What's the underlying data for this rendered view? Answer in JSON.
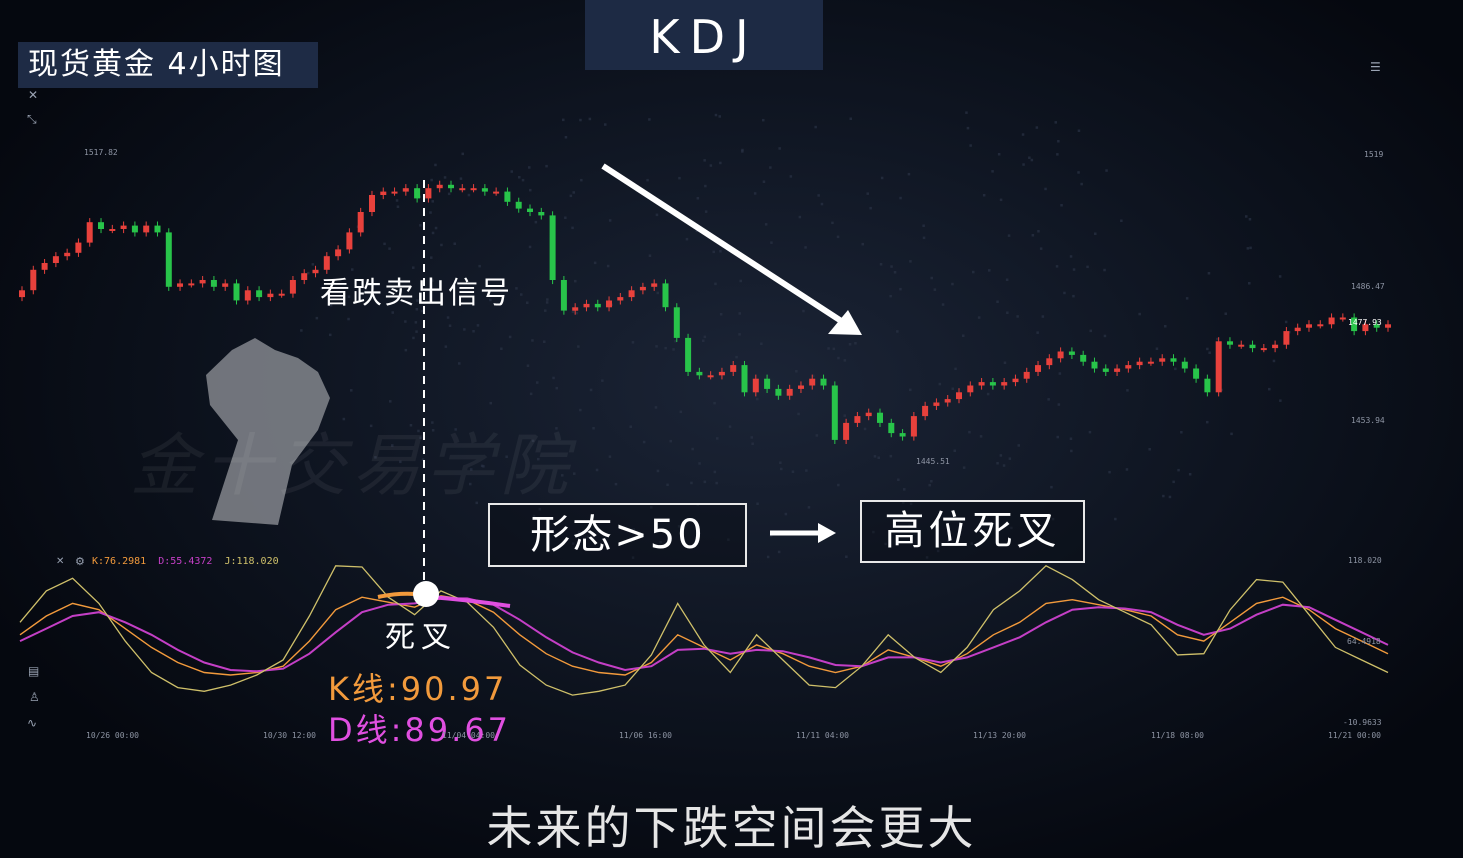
{
  "tag_title": "现货黄金  4小时图",
  "tag_kdj": "KDJ",
  "sell_signal_label": "看跌卖出信号",
  "death_cross_label": "死叉",
  "k_value_label": "K线:90.97",
  "d_value_label": "D线:89.67",
  "box_condition": "形态>50",
  "box_result": "高位死叉",
  "subtitle": "未来的下跌空间会更大",
  "watermark": "金十交易学院",
  "colors": {
    "up": "#e8413c",
    "down": "#28c44a",
    "k_line": "#f29a3c",
    "d_line": "#c43fc6",
    "j_line": "#cfc06a"
  },
  "chart_data": [
    {
      "type": "candlestick",
      "title": "现货黄金 4小时图",
      "price_labels": [
        "1517.82",
        "1519",
        "1486.47",
        "1477.93",
        "1453.94",
        "1445.51"
      ],
      "note": "approximate close prices per candle",
      "closes": [
        1486,
        1492,
        1494,
        1496,
        1497,
        1500,
        1506,
        1504,
        1504,
        1505,
        1503,
        1505,
        1503,
        1487,
        1488,
        1488,
        1489,
        1487,
        1488,
        1483,
        1486,
        1484,
        1485,
        1485,
        1489,
        1491,
        1492,
        1496,
        1498,
        1503,
        1509,
        1514,
        1515,
        1515,
        1516,
        1513,
        1516,
        1517,
        1516,
        1516,
        1516,
        1515,
        1515,
        1512,
        1510,
        1509,
        1508,
        1489,
        1480,
        1481,
        1482,
        1481,
        1483,
        1484,
        1486,
        1487,
        1488,
        1481,
        1472,
        1462,
        1461,
        1461,
        1462,
        1464,
        1456,
        1460,
        1457,
        1455,
        1457,
        1458,
        1460,
        1458,
        1442,
        1447,
        1449,
        1450,
        1447,
        1444,
        1443,
        1449,
        1452,
        1453,
        1454,
        1456,
        1458,
        1459,
        1458,
        1459,
        1460,
        1462,
        1464,
        1466,
        1468,
        1467,
        1465,
        1463,
        1462,
        1463,
        1464,
        1465,
        1465,
        1466,
        1465,
        1463,
        1460,
        1456,
        1471,
        1470,
        1470,
        1469,
        1469,
        1470,
        1474,
        1475,
        1476,
        1476,
        1478,
        1478,
        1474,
        1476,
        1475,
        1476
      ]
    },
    {
      "type": "line",
      "title": "KDJ",
      "legend": [
        "K:76.2981",
        "D:55.4372",
        "J:118.020"
      ],
      "y_ticks": [
        "118.020",
        "64.4918",
        "-10.9633"
      ],
      "x_ticks": [
        "10/26 00:00",
        "10/30 12:00",
        "11/04 04:00",
        "11/06 16:00",
        "11/11 04:00",
        "11/13 20:00",
        "11/18 08:00",
        "11/21 00:00"
      ],
      "series": [
        {
          "name": "K",
          "values": [
            60,
            75,
            85,
            80,
            65,
            50,
            38,
            30,
            28,
            30,
            35,
            55,
            80,
            90,
            86,
            82,
            91,
            88,
            78,
            60,
            45,
            35,
            30,
            28,
            38,
            60,
            50,
            40,
            52,
            45,
            35,
            30,
            35,
            48,
            42,
            35,
            45,
            60,
            70,
            85,
            88,
            84,
            80,
            75,
            60,
            55,
            70,
            85,
            90,
            80,
            65,
            55,
            45
          ]
        },
        {
          "name": "D",
          "values": [
            55,
            65,
            75,
            78,
            70,
            60,
            48,
            38,
            32,
            31,
            33,
            45,
            62,
            78,
            84,
            85,
            89,
            89,
            84,
            72,
            58,
            46,
            38,
            32,
            35,
            48,
            49,
            45,
            48,
            47,
            42,
            36,
            35,
            42,
            42,
            38,
            42,
            50,
            58,
            70,
            80,
            82,
            81,
            78,
            68,
            60,
            65,
            76,
            84,
            82,
            72,
            62,
            52
          ]
        },
        {
          "name": "J",
          "values": [
            70,
            95,
            105,
            85,
            55,
            30,
            18,
            15,
            20,
            28,
            40,
            75,
            115,
            114,
            90,
            76,
            95,
            86,
            66,
            36,
            20,
            12,
            15,
            20,
            44,
            85,
            52,
            30,
            60,
            40,
            20,
            18,
            35,
            60,
            42,
            30,
            50,
            80,
            95,
            115,
            104,
            88,
            78,
            68,
            44,
            45,
            80,
            104,
            102,
            76,
            50,
            40,
            30
          ]
        }
      ]
    }
  ]
}
